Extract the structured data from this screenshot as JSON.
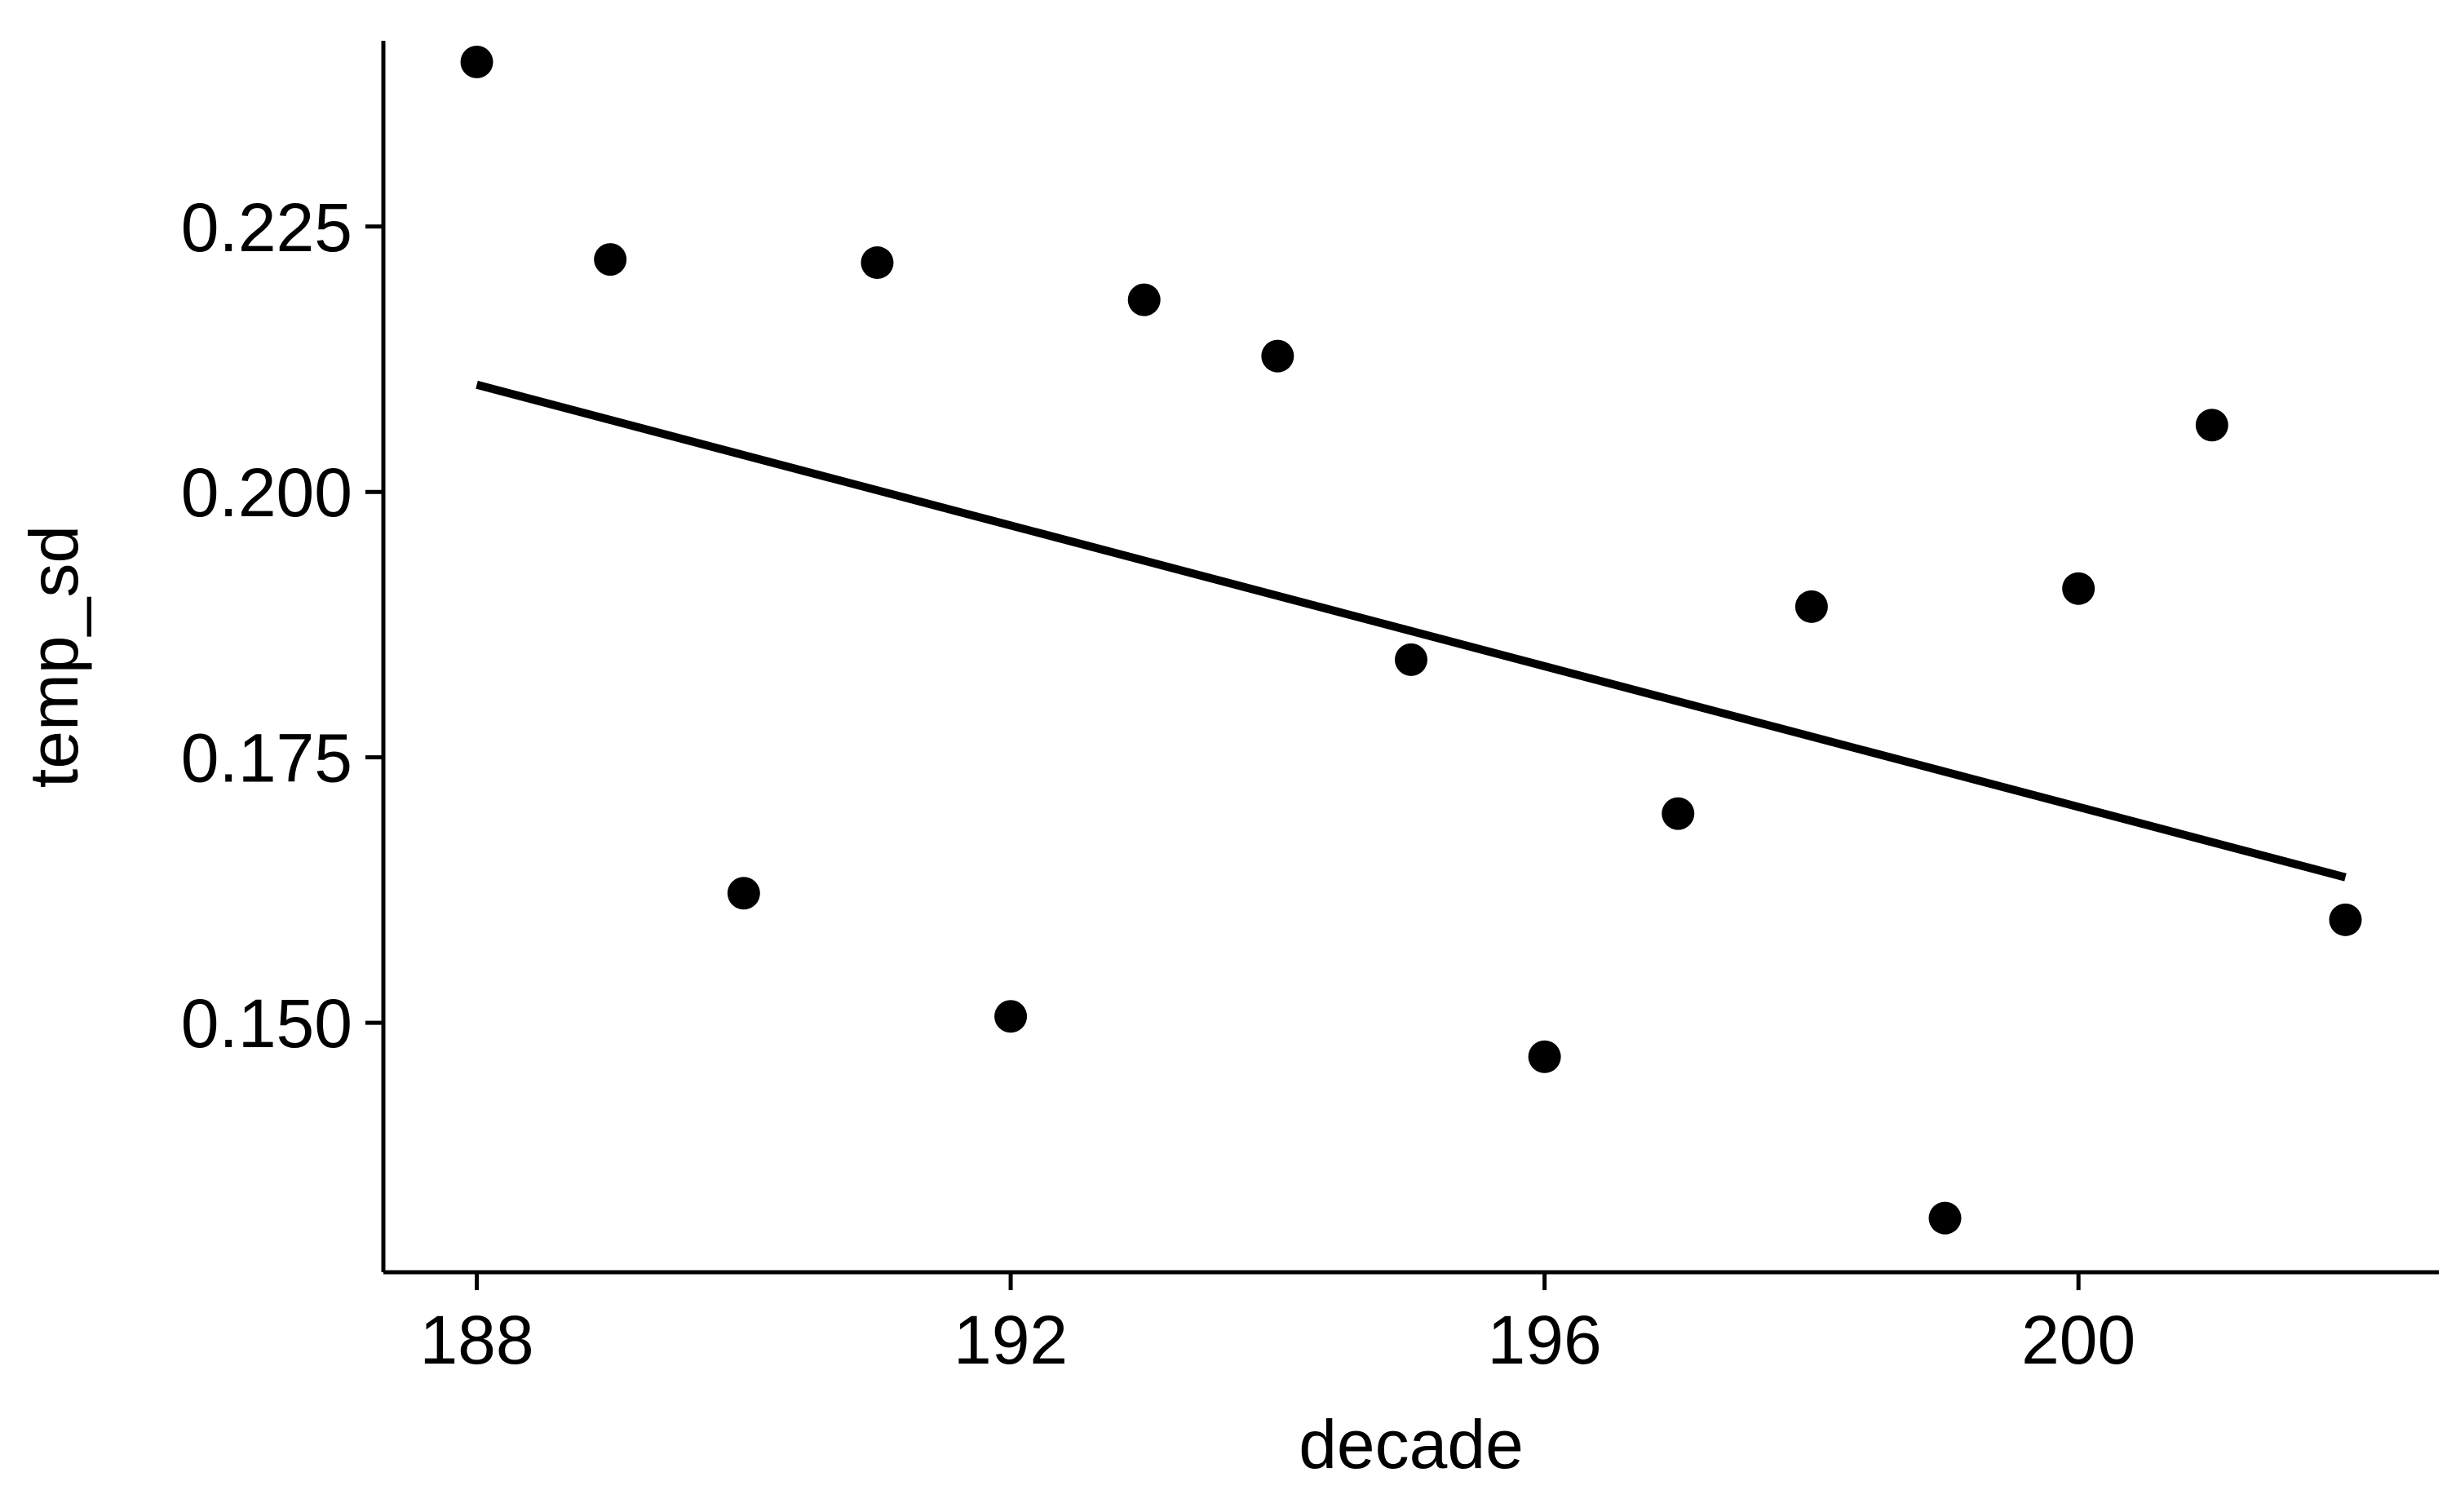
{
  "chart_data": {
    "type": "scatter",
    "title": "",
    "xlabel": "decade",
    "ylabel": "temp_sd",
    "x_ticks": [
      188,
      192,
      196,
      200
    ],
    "x_tick_labels": [
      "188",
      "192",
      "196",
      "200"
    ],
    "y_ticks": [
      0.15,
      0.175,
      0.2,
      0.225
    ],
    "y_tick_labels": [
      "0.150",
      "0.175",
      "0.200",
      "0.225"
    ],
    "xlim": [
      187.3,
      202.7
    ],
    "ylim": [
      0.1265,
      0.2425
    ],
    "grid": false,
    "legend": "none",
    "point_color": "#000000",
    "points": [
      {
        "x": 188,
        "y": 0.2405
      },
      {
        "x": 189,
        "y": 0.2219
      },
      {
        "x": 190,
        "y": 0.1622
      },
      {
        "x": 191,
        "y": 0.2216
      },
      {
        "x": 192,
        "y": 0.1506
      },
      {
        "x": 193,
        "y": 0.2181
      },
      {
        "x": 194,
        "y": 0.2128
      },
      {
        "x": 195,
        "y": 0.1842
      },
      {
        "x": 196,
        "y": 0.1468
      },
      {
        "x": 197,
        "y": 0.1697
      },
      {
        "x": 198,
        "y": 0.1892
      },
      {
        "x": 199,
        "y": 0.1316
      },
      {
        "x": 200,
        "y": 0.1909
      },
      {
        "x": 201,
        "y": 0.2063
      },
      {
        "x": 202,
        "y": 0.1597
      }
    ],
    "trendline": {
      "type": "linear",
      "color": "#000000",
      "start": {
        "x": 188,
        "y": 0.2101
      },
      "end": {
        "x": 202,
        "y": 0.1637
      }
    }
  }
}
